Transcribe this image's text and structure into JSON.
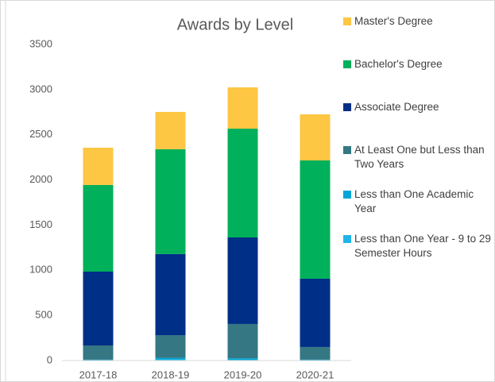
{
  "chart_data": {
    "type": "stacked_bar",
    "title": "Awards by Level",
    "categories": [
      "2017-18",
      "2018-19",
      "2019-20",
      "2020-21"
    ],
    "series": [
      {
        "name": "Less than One Year - 9 to 29 Semester Hours",
        "color": "#1fb5e8",
        "values": [
          0,
          10,
          5,
          0
        ]
      },
      {
        "name": "Less than One Academic Year",
        "color": "#00a6d6",
        "values": [
          10,
          20,
          20,
          10
        ]
      },
      {
        "name": "At Least One but Less than Two Years",
        "color": "#357783",
        "values": [
          157,
          251,
          380,
          140
        ]
      },
      {
        "name": "Associate Degree",
        "color": "#002f87",
        "values": [
          818,
          899,
          958,
          756
        ]
      },
      {
        "name": "Bachelor's Degree",
        "color": "#00b05a",
        "values": [
          959,
          1160,
          1205,
          1310
        ]
      },
      {
        "name": "Master's Degree",
        "color": "#fdc643",
        "values": [
          413,
          413,
          457,
          510
        ]
      }
    ],
    "ylim": [
      0,
      3500
    ],
    "yticks": [
      0,
      500,
      1000,
      1500,
      2000,
      2500,
      3000,
      3500
    ],
    "grid": false,
    "legend": "right"
  }
}
